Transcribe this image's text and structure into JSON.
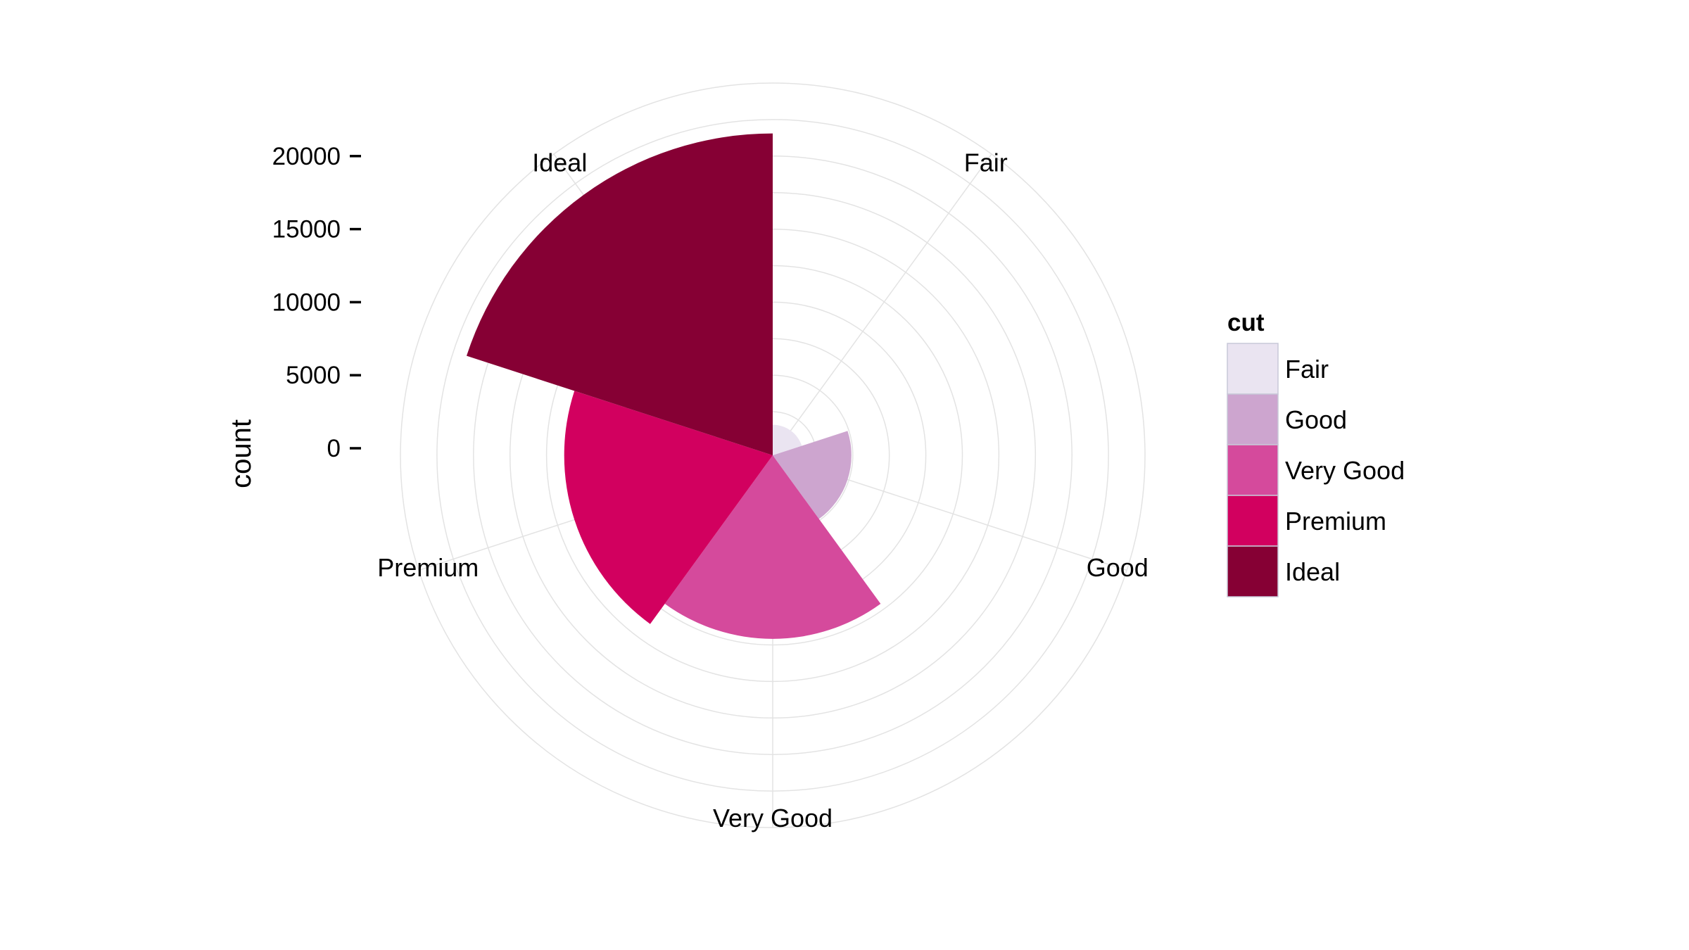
{
  "chart_data": {
    "type": "polar-bar",
    "title": "",
    "xlabel": "",
    "ylabel": "count",
    "categories": [
      "Fair",
      "Good",
      "Very Good",
      "Premium",
      "Ideal"
    ],
    "values": [
      1610,
      4906,
      12082,
      13791,
      21551
    ],
    "ylim": [
      0,
      25000
    ],
    "y_ticks": [
      {
        "value": 0,
        "label": "0"
      },
      {
        "value": 5000,
        "label": "5000"
      },
      {
        "value": 10000,
        "label": "10000"
      },
      {
        "value": 15000,
        "label": "15000"
      },
      {
        "value": 20000,
        "label": "20000"
      }
    ],
    "grid": true,
    "colors": [
      "#EAE4F1",
      "#CDA5CF",
      "#D54A9C",
      "#D2005F",
      "#860034"
    ],
    "legend": {
      "title": "cut",
      "position": "right",
      "entries": [
        "Fair",
        "Good",
        "Very Good",
        "Premium",
        "Ideal"
      ]
    }
  }
}
